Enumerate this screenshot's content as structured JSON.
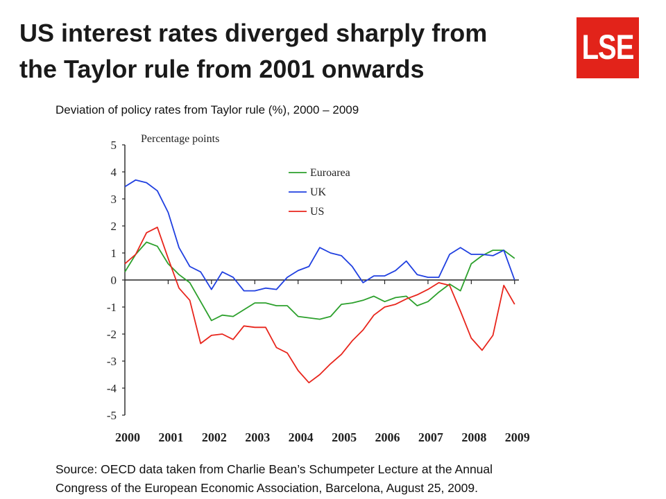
{
  "slide": {
    "title_lines": [
      "US interest rates diverged sharply from",
      "the Taylor rule from 2001 onwards"
    ],
    "logo_text": "LSE",
    "subtitle": "Deviation of policy rates from Taylor rule (%), 2000 – 2009",
    "source_lines": [
      "Source: OECD data taken from Charlie Bean’s Schumpeter Lecture at the Annual",
      "Congress of the European Economic Association, Barcelona, August 25, 2009."
    ]
  },
  "colors": {
    "logo": "#e2231a",
    "euroarea": "#2ca02c",
    "uk": "#1f3fe0",
    "us": "#e8251c"
  },
  "chart_data": {
    "type": "line",
    "ylabel": "Percentage points",
    "ylim": [
      -5,
      5
    ],
    "yticks": [
      5,
      4,
      3,
      2,
      1,
      0,
      -1,
      -2,
      -3,
      -4,
      -5
    ],
    "xlim": [
      2000,
      2009.1
    ],
    "xticks": [
      2000,
      2001,
      2002,
      2003,
      2004,
      2005,
      2006,
      2007,
      2008,
      2009
    ],
    "xticklabels": [
      "2000",
      "2001",
      "2002",
      "2003",
      "2004",
      "2005",
      "2006",
      "2007",
      "2008",
      "2009"
    ],
    "legend_position": "top-center",
    "grid": false,
    "series": [
      {
        "name": "Euroarea",
        "x": [
          2000.0,
          2000.25,
          2000.5,
          2000.75,
          2001.0,
          2001.25,
          2001.5,
          2001.75,
          2002.0,
          2002.25,
          2002.5,
          2002.75,
          2003.0,
          2003.25,
          2003.5,
          2003.75,
          2004.0,
          2004.25,
          2004.5,
          2004.75,
          2005.0,
          2005.25,
          2005.5,
          2005.75,
          2006.0,
          2006.25,
          2006.5,
          2006.75,
          2007.0,
          2007.25,
          2007.5,
          2007.75,
          2008.0,
          2008.25,
          2008.5,
          2008.75,
          2009.0
        ],
        "y": [
          0.3,
          0.95,
          1.4,
          1.25,
          0.6,
          0.2,
          -0.1,
          -0.8,
          -1.5,
          -1.3,
          -1.35,
          -1.1,
          -0.85,
          -0.85,
          -0.95,
          -0.95,
          -1.35,
          -1.4,
          -1.45,
          -1.35,
          -0.9,
          -0.85,
          -0.75,
          -0.6,
          -0.8,
          -0.65,
          -0.6,
          -0.95,
          -0.8,
          -0.45,
          -0.15,
          -0.4,
          0.6,
          0.9,
          1.1,
          1.1,
          0.8
        ]
      },
      {
        "name": "UK",
        "x": [
          2000.0,
          2000.25,
          2000.5,
          2000.75,
          2001.0,
          2001.25,
          2001.5,
          2001.75,
          2002.0,
          2002.25,
          2002.5,
          2002.75,
          2003.0,
          2003.25,
          2003.5,
          2003.75,
          2004.0,
          2004.25,
          2004.5,
          2004.75,
          2005.0,
          2005.25,
          2005.5,
          2005.75,
          2006.0,
          2006.25,
          2006.5,
          2006.75,
          2007.0,
          2007.25,
          2007.5,
          2007.75,
          2008.0,
          2008.25,
          2008.5,
          2008.75,
          2009.0
        ],
        "y": [
          3.45,
          3.7,
          3.6,
          3.3,
          2.5,
          1.2,
          0.5,
          0.3,
          -0.35,
          0.3,
          0.1,
          -0.4,
          -0.4,
          -0.3,
          -0.35,
          0.1,
          0.35,
          0.5,
          1.2,
          1.0,
          0.9,
          0.5,
          -0.1,
          0.15,
          0.15,
          0.35,
          0.7,
          0.2,
          0.1,
          0.1,
          0.95,
          1.2,
          0.95,
          0.95,
          0.9,
          1.1,
          0.0
        ]
      },
      {
        "name": "US",
        "x": [
          2000.0,
          2000.25,
          2000.5,
          2000.75,
          2001.0,
          2001.25,
          2001.5,
          2001.75,
          2002.0,
          2002.25,
          2002.5,
          2002.75,
          2003.0,
          2003.25,
          2003.5,
          2003.75,
          2004.0,
          2004.25,
          2004.5,
          2004.75,
          2005.0,
          2005.25,
          2005.5,
          2005.75,
          2006.0,
          2006.25,
          2006.5,
          2006.75,
          2007.0,
          2007.25,
          2007.5,
          2007.75,
          2008.0,
          2008.25,
          2008.5,
          2008.75,
          2009.0
        ],
        "y": [
          0.6,
          0.95,
          1.75,
          1.95,
          0.8,
          -0.3,
          -0.75,
          -2.35,
          -2.05,
          -2.0,
          -2.2,
          -1.7,
          -1.75,
          -1.75,
          -2.5,
          -2.7,
          -3.35,
          -3.8,
          -3.5,
          -3.1,
          -2.75,
          -2.25,
          -1.85,
          -1.3,
          -1.0,
          -0.9,
          -0.7,
          -0.55,
          -0.35,
          -0.1,
          -0.2,
          -1.15,
          -2.15,
          -2.6,
          -2.05,
          -0.2,
          -0.9
        ]
      }
    ]
  }
}
